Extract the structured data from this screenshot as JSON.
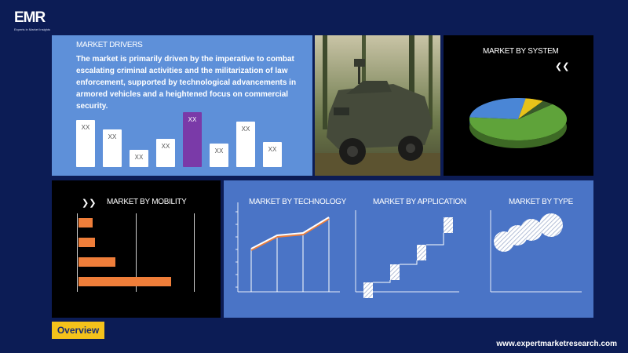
{
  "brand": {
    "logo_text": "EMR",
    "tagline": "Experts in Market Insights"
  },
  "drivers": {
    "title": "MARKET DRIVERS",
    "text": "The market is primarily driven by the imperative to combat escalating criminal activities and the militarization of law enforcement, supported by technological advancements in armored vehicles and a heightened focus on commercial security.",
    "bar_label": "XX",
    "bars": [
      0.6,
      0.48,
      0.22,
      0.36,
      0.7,
      0.3,
      0.58,
      0.32
    ],
    "highlight_index": 4
  },
  "system": {
    "title": "MARKET BY SYSTEM",
    "chart_data": {
      "type": "pie",
      "values": [
        64,
        26,
        6,
        4
      ],
      "colors": [
        "#5fa33a",
        "#4a86d6",
        "#e8c21a",
        "#3a5a2a"
      ]
    }
  },
  "mobility": {
    "title": "MARKET BY MOBILITY",
    "chart_data": {
      "type": "bar",
      "values": [
        0.15,
        0.18,
        0.4,
        1.0
      ],
      "color": "#ef7e3a"
    }
  },
  "technology": {
    "title": "MARKET BY TECHNOLOGY",
    "chart_data": {
      "type": "line",
      "values": [
        0.55,
        0.72,
        0.75,
        0.95
      ]
    }
  },
  "application": {
    "title": "MARKET BY APPLICATION",
    "chart_data": {
      "type": "bar",
      "values": [
        0.12,
        0.35,
        0.6,
        0.95
      ]
    }
  },
  "type_panel": {
    "title": "MARKET BY TYPE",
    "chart_data": {
      "type": "scatter",
      "values": [
        1,
        2,
        3,
        4
      ]
    }
  },
  "footer": {
    "overview_label": "Overview",
    "url": "www.expertmarketresearch.com"
  }
}
